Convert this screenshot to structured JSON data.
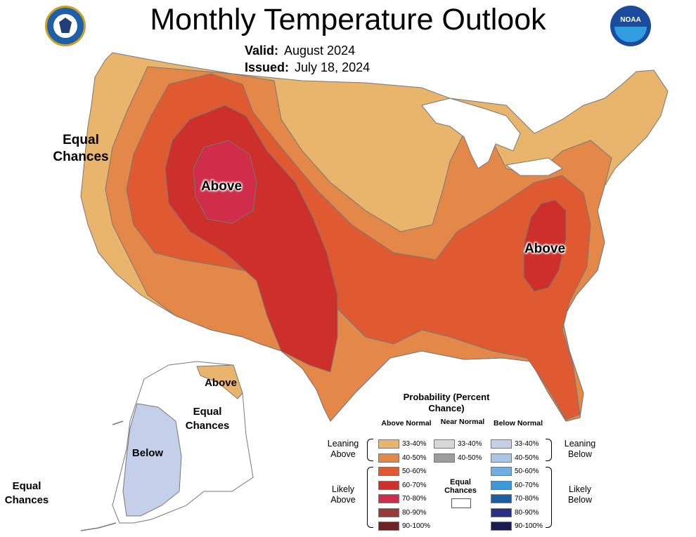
{
  "title": "Monthly Temperature Outlook",
  "valid": {
    "label": "Valid:",
    "value": "August 2024"
  },
  "issued": {
    "label": "Issued:",
    "value": "July 18, 2024"
  },
  "logos": {
    "left": "commerce-seal-icon",
    "right": "noaa-logo-icon",
    "noaa_text": "NOAA"
  },
  "map_labels": {
    "equal_chances_west": "Equal Chances",
    "above_west": "Above",
    "above_east": "Above",
    "alaska_above": "Above",
    "alaska_equal": "Equal Chances",
    "alaska_below": "Below",
    "equal_chances_sw": "Equal Chances"
  },
  "legend": {
    "title": "Probability (Percent Chance)",
    "headers": {
      "above": "Above Normal",
      "near": "Near Normal",
      "below": "Below Normal"
    },
    "side_labels": {
      "leaning_above": "Leaning Above",
      "likely_above": "Likely Above",
      "leaning_below": "Leaning Below",
      "likely_below": "Likely Below"
    },
    "equal_chances": "Equal Chances",
    "above": [
      {
        "label": "33-40%",
        "color": "#e9b46c"
      },
      {
        "label": "40-50%",
        "color": "#e4884a"
      },
      {
        "label": "50-60%",
        "color": "#df5a30"
      },
      {
        "label": "60-70%",
        "color": "#cd2f2a"
      },
      {
        "label": "70-80%",
        "color": "#cf2d4a"
      },
      {
        "label": "80-90%",
        "color": "#973a3a"
      },
      {
        "label": "90-100%",
        "color": "#6b2424"
      }
    ],
    "near": [
      {
        "label": "33-40%",
        "color": "#d8d8d8"
      },
      {
        "label": "40-50%",
        "color": "#9c9c9c"
      }
    ],
    "below": [
      {
        "label": "33-40%",
        "color": "#c4d0ea"
      },
      {
        "label": "40-50%",
        "color": "#a8c6e6"
      },
      {
        "label": "50-60%",
        "color": "#6eaee2"
      },
      {
        "label": "60-70%",
        "color": "#3b98d9"
      },
      {
        "label": "70-80%",
        "color": "#1a5ea6"
      },
      {
        "label": "80-90%",
        "color": "#2a2f86"
      },
      {
        "label": "90-100%",
        "color": "#1a1b4f"
      }
    ]
  }
}
